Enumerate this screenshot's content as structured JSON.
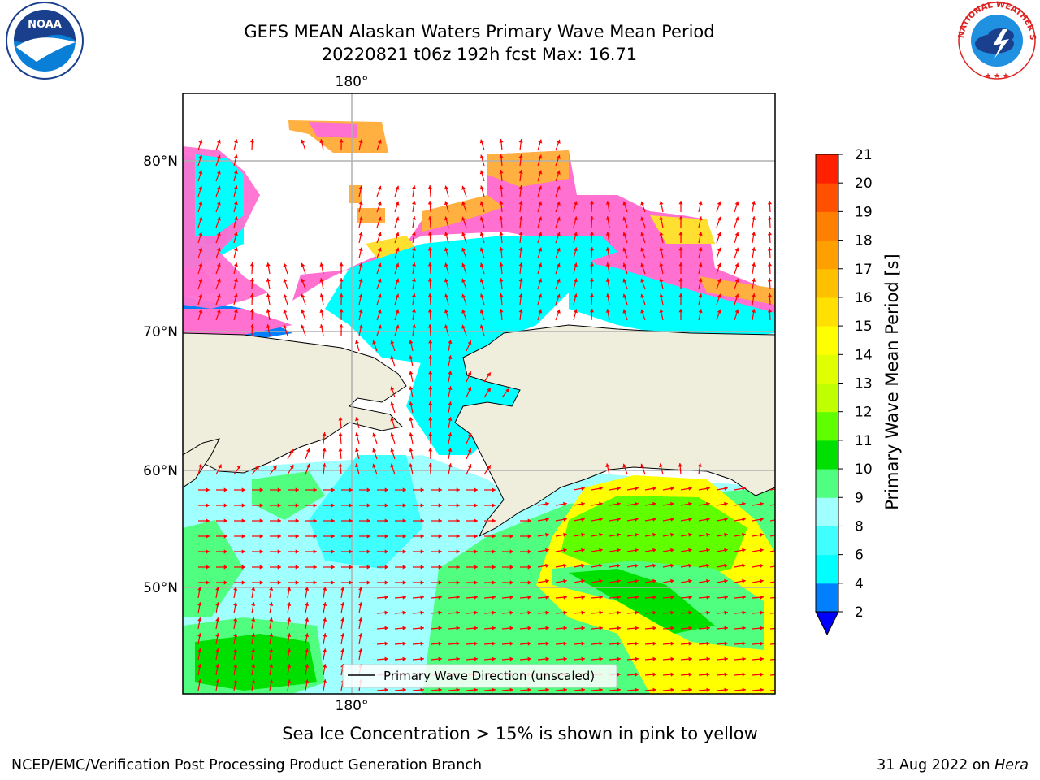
{
  "title": {
    "line1": "GEFS MEAN Alaskan Waters Primary Wave Mean Period",
    "line2": "20220821 t06z 192h fcst   Max: 16.71"
  },
  "axes": {
    "top_lon_label": "180°",
    "bottom_lon_label": "180°",
    "lat_labels": [
      "80°N",
      "70°N",
      "60°N",
      "50°N"
    ]
  },
  "legend": {
    "entry": "Primary Wave Direction (unscaled)"
  },
  "colorbar": {
    "label": "Primary Wave Mean Period [s]",
    "ticks": [
      "2",
      "4",
      "6",
      "8",
      "9",
      "10",
      "11",
      "12",
      "13",
      "14",
      "15",
      "16",
      "17",
      "18",
      "19",
      "20",
      "21"
    ],
    "colors": [
      "#0080ff",
      "#00ffff",
      "#40ffff",
      "#a0ffff",
      "#50ff80",
      "#00e000",
      "#60ff00",
      "#c0ff00",
      "#e0ff00",
      "#ffff00",
      "#ffe000",
      "#ffc000",
      "#ffa000",
      "#ff8000",
      "#ff5000",
      "#ff2000"
    ],
    "under_color": "#0000ff"
  },
  "caption": "Sea Ice Concentration > 15% is shown in pink to yellow",
  "footer": {
    "left": "NCEP/EMC/Verification Post Processing Product Generation Branch",
    "right_date": "31 Aug 2022 on ",
    "right_machine": "Hera"
  },
  "logos": {
    "noaa": "NOAA",
    "nws": "NATIONAL WEATHER SERVICE"
  },
  "colors": {
    "land": "#efeddc",
    "arrow": "#ff0000",
    "grid": "#b0b0b0",
    "ice_pink": "#ff70d0",
    "ice_orange": "#ffb040",
    "ice_yellow": "#ffe030"
  }
}
